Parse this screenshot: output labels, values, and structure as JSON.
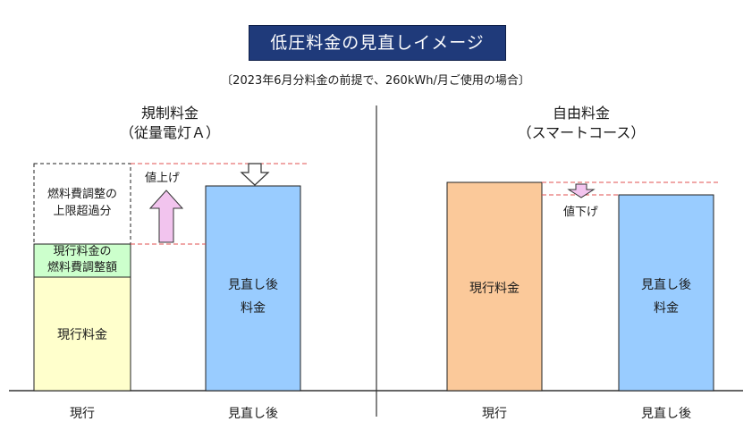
{
  "title": "低圧料金の見直しイメージ",
  "subtitle": "〔2023年6月分料金の前提で、260kWh/月ご使用の場合〕",
  "panels": {
    "left": {
      "title_line1": "規制料金",
      "title_line2": "（従量電灯Ａ）",
      "x_labels": [
        "現行",
        "見直し後"
      ],
      "segments": {
        "base": "現行料金",
        "fuel_adj_line1": "現行料金の",
        "fuel_adj_line2": "燃料費調整額",
        "cap_excess_line1": "燃料費調整の",
        "cap_excess_line2": "上限超過分"
      },
      "revised_line1": "見直し後",
      "revised_line2": "料金",
      "change_label": "値上げ"
    },
    "right": {
      "title_line1": "自由料金",
      "title_line2": "（スマートコース）",
      "x_labels": [
        "現行",
        "見直し後"
      ],
      "current_label": "現行料金",
      "revised_line1": "見直し後",
      "revised_line2": "料金",
      "change_label": "値下げ"
    }
  },
  "colors": {
    "title_bg": "#1f3a7a",
    "current_regulated": "#ffffcc",
    "fuel_adj": "#ccffcc",
    "revised": "#99ccff",
    "current_free": "#fbc99a",
    "up_arrow": "#f2c4ee",
    "down_arrow": "#f2c4ee",
    "dashed_red": "#e05050"
  },
  "chart_data": [
    {
      "type": "bar",
      "title": "規制料金（従量電灯Ａ）",
      "categories": [
        "現行",
        "見直し後"
      ],
      "stacked_components": [
        "現行料金",
        "現行料金の燃料費調整額",
        "燃料費調整の上限超過分"
      ],
      "current_stack": [
        59,
        15,
        36
      ],
      "revised_value": 105,
      "direction": "値上げ",
      "note": "illustrative chart, no numeric axis"
    },
    {
      "type": "bar",
      "title": "自由料金（スマートコース）",
      "categories": [
        "現行",
        "見直し後"
      ],
      "values": [
        107,
        100
      ],
      "direction": "値下げ",
      "note": "illustrative chart, no numeric axis"
    }
  ]
}
